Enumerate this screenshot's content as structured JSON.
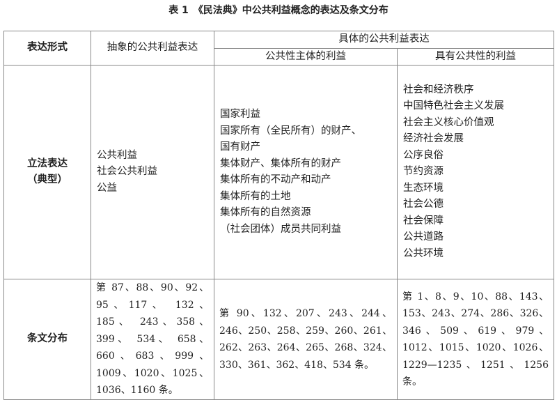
{
  "caption": "表 1　《民法典》中公共利益概念的表达及条文分布",
  "header": {
    "form": "表达形式",
    "abstract": "抽象的公共利益表达",
    "concrete": "具体的公共利益表达",
    "subject": "公共性主体的利益",
    "public": "具有公共性的利益"
  },
  "rows": [
    {
      "label_line1": "立法表达",
      "label_line2": "（典型）",
      "abstract": [
        "公共利益",
        "社会公共利益",
        "公益"
      ],
      "subject": [
        "国家利益",
        "国家所有（全民所有）的财产、",
        "国有财产",
        "集体财产、集体所有的财产",
        "集体所有的不动产和动产",
        "集体所有的土地",
        "集体所有的自然资源",
        "（社会团体）成员共同利益"
      ],
      "public": [
        "社会和经济秩序",
        "中国特色社会主义发展",
        "社会主义核心价值观",
        "经济社会发展",
        "公序良俗",
        "节约资源",
        "生态环境",
        "社会公德",
        "社会保障",
        "公共道路",
        "公共环境"
      ]
    },
    {
      "label": "条文分布",
      "abstract": "第 87、88、90、92、95、117、 132、 185、 243、358、 399、 534、 658、660、683、999、1009、1020、1025、1036、1160 条。",
      "subject": "第 90、132、207、243、244、246、250、258、259、260、261、262、263、264、265、268、324、330、361、362、418、534 条。",
      "public": "第 1、8、9、10、88、143、153、243、274、286、326、346、509、619、979、1012、1015、1020、1026、1229—1235、1251、1256 条。"
    }
  ]
}
